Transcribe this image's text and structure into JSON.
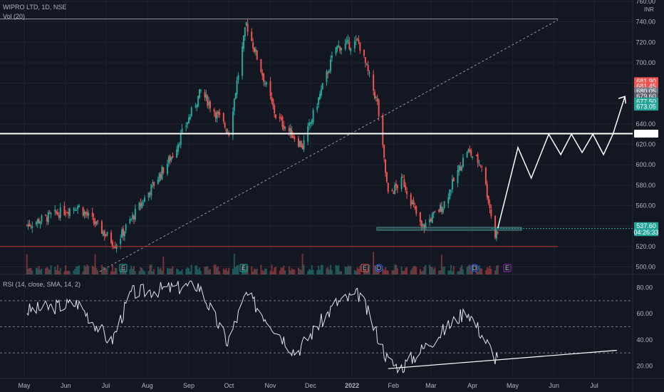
{
  "header": {
    "symbol": "WIPRO LTD, 1D, NSE",
    "volume_study": "Vol (20)",
    "rsi_study": "RSI (14, close, SMA, 14, 2)",
    "currency": "INR"
  },
  "colors": {
    "background": "#131722",
    "grid": "#1f2330",
    "up": "#26a69a",
    "down": "#ef5350",
    "white": "#ffffff",
    "axis_text": "#b2b5be",
    "current_price": "#26a69a",
    "rsi_line": "#e0e3eb",
    "support_box": "#4a8c8c",
    "red_line": "#c0392b"
  },
  "chart_data": [
    {
      "type": "candlestick",
      "title": "WIPRO LTD, 1D, NSE",
      "y_axis_ticks": [
        500,
        520,
        540,
        560,
        580,
        600,
        620,
        640,
        660,
        680,
        700,
        720,
        740,
        760
      ],
      "y_axis_top_label": "760.00",
      "x_axis_ticks": [
        "May",
        "Jun",
        "Jul",
        "Aug",
        "Sep",
        "Oct",
        "Nov",
        "Dec",
        "2022",
        "Feb",
        "Mar",
        "Apr",
        "May",
        "Jun",
        "Jul"
      ],
      "key_points": [
        {
          "date": "2021-05-01",
          "close": 540
        },
        {
          "date": "2021-06-10",
          "close": 560
        },
        {
          "date": "2021-07-08",
          "close": 522
        },
        {
          "date": "2021-08-20",
          "close": 610
        },
        {
          "date": "2021-09-10",
          "close": 672
        },
        {
          "date": "2021-10-01",
          "close": 632
        },
        {
          "date": "2021-10-14",
          "close": 738
        },
        {
          "date": "2021-11-05",
          "close": 648
        },
        {
          "date": "2021-11-25",
          "close": 618
        },
        {
          "date": "2021-12-20",
          "close": 715
        },
        {
          "date": "2022-01-06",
          "close": 720
        },
        {
          "date": "2022-01-20",
          "close": 660
        },
        {
          "date": "2022-01-28",
          "close": 570
        },
        {
          "date": "2022-02-08",
          "close": 585
        },
        {
          "date": "2022-02-22",
          "close": 538
        },
        {
          "date": "2022-03-10",
          "close": 560
        },
        {
          "date": "2022-03-28",
          "close": 614
        },
        {
          "date": "2022-04-08",
          "close": 600
        },
        {
          "date": "2022-04-18",
          "close": 530
        },
        {
          "date": "2022-04-20",
          "close": 537.6
        }
      ],
      "price_labels": [
        {
          "text": "681.90",
          "color": "#ef5350",
          "price": 681.9
        },
        {
          "text": "681.45",
          "color": "#ef5350",
          "price": 677.0
        },
        {
          "text": "680.05",
          "color": "#787b86",
          "price": 672.0
        },
        {
          "text": "679.60",
          "color": "#5d606b",
          "price": 667.0
        },
        {
          "text": "677.50",
          "color": "#26a69a",
          "price": 662.0
        },
        {
          "text": "673.05",
          "color": "#26a69a",
          "price": 657.0
        },
        {
          "text": "630.50",
          "color": "#ffffff",
          "price": 630.5
        },
        {
          "text": "537.60",
          "color": "#26a69a",
          "price": 540.0
        },
        {
          "text": "04:26:33",
          "color": "#26a69a",
          "price": 534.0
        }
      ],
      "resistance_level": 630.5,
      "red_support_level": 520,
      "support_zone": [
        536,
        538
      ],
      "top_channel_level": 740,
      "projection_path": [
        {
          "date": "2022-04-20",
          "price": 538
        },
        {
          "date": "2022-05-05",
          "price": 617
        },
        {
          "date": "2022-05-15",
          "price": 587
        },
        {
          "date": "2022-05-28",
          "price": 630
        },
        {
          "date": "2022-06-06",
          "price": 610
        },
        {
          "date": "2022-06-14",
          "price": 630
        },
        {
          "date": "2022-06-22",
          "price": 612
        },
        {
          "date": "2022-06-30",
          "price": 630
        },
        {
          "date": "2022-07-08",
          "price": 610
        },
        {
          "date": "2022-07-15",
          "price": 630
        },
        {
          "date": "2022-07-24",
          "price": 667
        }
      ],
      "event_markers": [
        "E",
        "E",
        "E",
        "D",
        "D",
        "E"
      ]
    },
    {
      "type": "line",
      "title": "RSI (14, close, SMA, 14, 2)",
      "y_axis_ticks": [
        20,
        40,
        60,
        80
      ],
      "levels": [
        70,
        50,
        30
      ],
      "key_points": [
        {
          "date": "2021-05-01",
          "value": 62
        },
        {
          "date": "2021-06-10",
          "value": 68
        },
        {
          "date": "2021-07-05",
          "value": 38
        },
        {
          "date": "2021-07-20",
          "value": 76
        },
        {
          "date": "2021-09-08",
          "value": 82
        },
        {
          "date": "2021-09-30",
          "value": 38
        },
        {
          "date": "2021-10-14",
          "value": 75
        },
        {
          "date": "2021-11-20",
          "value": 30
        },
        {
          "date": "2021-12-20",
          "value": 68
        },
        {
          "date": "2022-01-07",
          "value": 75
        },
        {
          "date": "2022-01-28",
          "value": 24
        },
        {
          "date": "2022-02-06",
          "value": 18
        },
        {
          "date": "2022-03-28",
          "value": 63
        },
        {
          "date": "2022-04-18",
          "value": 27
        },
        {
          "date": "2022-04-20",
          "value": 30
        }
      ],
      "trendline": [
        {
          "date": "2022-01-28",
          "value": 18
        },
        {
          "date": "2022-07-18",
          "value": 32
        }
      ]
    }
  ]
}
